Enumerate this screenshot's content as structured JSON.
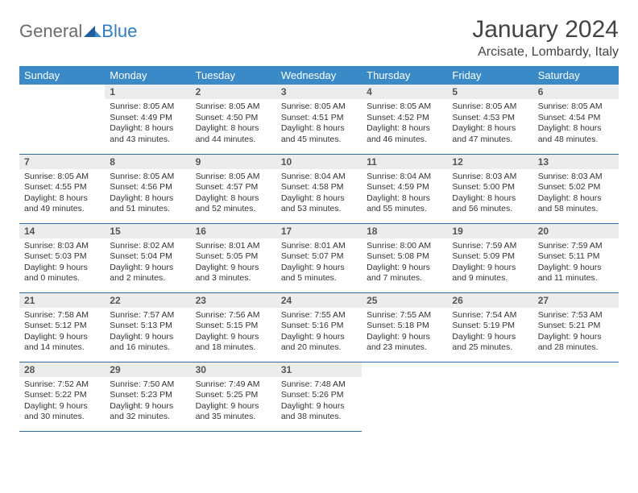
{
  "logo": {
    "general": "General",
    "blue": "Blue"
  },
  "title": "January 2024",
  "location": "Arcisate, Lombardy, Italy",
  "colors": {
    "header_bg": "#3a8ac7",
    "header_text": "#ffffff",
    "daynum_bg": "#ececec",
    "rule": "#2f6fa8",
    "logo_blue": "#2f7ec1",
    "logo_gray": "#6b6b6b"
  },
  "dayNames": [
    "Sunday",
    "Monday",
    "Tuesday",
    "Wednesday",
    "Thursday",
    "Friday",
    "Saturday"
  ],
  "weeks": [
    [
      {
        "empty": true
      },
      {
        "n": "1",
        "sr": "Sunrise: 8:05 AM",
        "ss": "Sunset: 4:49 PM",
        "dl": "Daylight: 8 hours and 43 minutes."
      },
      {
        "n": "2",
        "sr": "Sunrise: 8:05 AM",
        "ss": "Sunset: 4:50 PM",
        "dl": "Daylight: 8 hours and 44 minutes."
      },
      {
        "n": "3",
        "sr": "Sunrise: 8:05 AM",
        "ss": "Sunset: 4:51 PM",
        "dl": "Daylight: 8 hours and 45 minutes."
      },
      {
        "n": "4",
        "sr": "Sunrise: 8:05 AM",
        "ss": "Sunset: 4:52 PM",
        "dl": "Daylight: 8 hours and 46 minutes."
      },
      {
        "n": "5",
        "sr": "Sunrise: 8:05 AM",
        "ss": "Sunset: 4:53 PM",
        "dl": "Daylight: 8 hours and 47 minutes."
      },
      {
        "n": "6",
        "sr": "Sunrise: 8:05 AM",
        "ss": "Sunset: 4:54 PM",
        "dl": "Daylight: 8 hours and 48 minutes."
      }
    ],
    [
      {
        "n": "7",
        "sr": "Sunrise: 8:05 AM",
        "ss": "Sunset: 4:55 PM",
        "dl": "Daylight: 8 hours and 49 minutes."
      },
      {
        "n": "8",
        "sr": "Sunrise: 8:05 AM",
        "ss": "Sunset: 4:56 PM",
        "dl": "Daylight: 8 hours and 51 minutes."
      },
      {
        "n": "9",
        "sr": "Sunrise: 8:05 AM",
        "ss": "Sunset: 4:57 PM",
        "dl": "Daylight: 8 hours and 52 minutes."
      },
      {
        "n": "10",
        "sr": "Sunrise: 8:04 AM",
        "ss": "Sunset: 4:58 PM",
        "dl": "Daylight: 8 hours and 53 minutes."
      },
      {
        "n": "11",
        "sr": "Sunrise: 8:04 AM",
        "ss": "Sunset: 4:59 PM",
        "dl": "Daylight: 8 hours and 55 minutes."
      },
      {
        "n": "12",
        "sr": "Sunrise: 8:03 AM",
        "ss": "Sunset: 5:00 PM",
        "dl": "Daylight: 8 hours and 56 minutes."
      },
      {
        "n": "13",
        "sr": "Sunrise: 8:03 AM",
        "ss": "Sunset: 5:02 PM",
        "dl": "Daylight: 8 hours and 58 minutes."
      }
    ],
    [
      {
        "n": "14",
        "sr": "Sunrise: 8:03 AM",
        "ss": "Sunset: 5:03 PM",
        "dl": "Daylight: 9 hours and 0 minutes."
      },
      {
        "n": "15",
        "sr": "Sunrise: 8:02 AM",
        "ss": "Sunset: 5:04 PM",
        "dl": "Daylight: 9 hours and 2 minutes."
      },
      {
        "n": "16",
        "sr": "Sunrise: 8:01 AM",
        "ss": "Sunset: 5:05 PM",
        "dl": "Daylight: 9 hours and 3 minutes."
      },
      {
        "n": "17",
        "sr": "Sunrise: 8:01 AM",
        "ss": "Sunset: 5:07 PM",
        "dl": "Daylight: 9 hours and 5 minutes."
      },
      {
        "n": "18",
        "sr": "Sunrise: 8:00 AM",
        "ss": "Sunset: 5:08 PM",
        "dl": "Daylight: 9 hours and 7 minutes."
      },
      {
        "n": "19",
        "sr": "Sunrise: 7:59 AM",
        "ss": "Sunset: 5:09 PM",
        "dl": "Daylight: 9 hours and 9 minutes."
      },
      {
        "n": "20",
        "sr": "Sunrise: 7:59 AM",
        "ss": "Sunset: 5:11 PM",
        "dl": "Daylight: 9 hours and 11 minutes."
      }
    ],
    [
      {
        "n": "21",
        "sr": "Sunrise: 7:58 AM",
        "ss": "Sunset: 5:12 PM",
        "dl": "Daylight: 9 hours and 14 minutes."
      },
      {
        "n": "22",
        "sr": "Sunrise: 7:57 AM",
        "ss": "Sunset: 5:13 PM",
        "dl": "Daylight: 9 hours and 16 minutes."
      },
      {
        "n": "23",
        "sr": "Sunrise: 7:56 AM",
        "ss": "Sunset: 5:15 PM",
        "dl": "Daylight: 9 hours and 18 minutes."
      },
      {
        "n": "24",
        "sr": "Sunrise: 7:55 AM",
        "ss": "Sunset: 5:16 PM",
        "dl": "Daylight: 9 hours and 20 minutes."
      },
      {
        "n": "25",
        "sr": "Sunrise: 7:55 AM",
        "ss": "Sunset: 5:18 PM",
        "dl": "Daylight: 9 hours and 23 minutes."
      },
      {
        "n": "26",
        "sr": "Sunrise: 7:54 AM",
        "ss": "Sunset: 5:19 PM",
        "dl": "Daylight: 9 hours and 25 minutes."
      },
      {
        "n": "27",
        "sr": "Sunrise: 7:53 AM",
        "ss": "Sunset: 5:21 PM",
        "dl": "Daylight: 9 hours and 28 minutes."
      }
    ],
    [
      {
        "n": "28",
        "sr": "Sunrise: 7:52 AM",
        "ss": "Sunset: 5:22 PM",
        "dl": "Daylight: 9 hours and 30 minutes."
      },
      {
        "n": "29",
        "sr": "Sunrise: 7:50 AM",
        "ss": "Sunset: 5:23 PM",
        "dl": "Daylight: 9 hours and 32 minutes."
      },
      {
        "n": "30",
        "sr": "Sunrise: 7:49 AM",
        "ss": "Sunset: 5:25 PM",
        "dl": "Daylight: 9 hours and 35 minutes."
      },
      {
        "n": "31",
        "sr": "Sunrise: 7:48 AM",
        "ss": "Sunset: 5:26 PM",
        "dl": "Daylight: 9 hours and 38 minutes."
      },
      {
        "empty": true
      },
      {
        "empty": true
      },
      {
        "empty": true
      }
    ]
  ]
}
